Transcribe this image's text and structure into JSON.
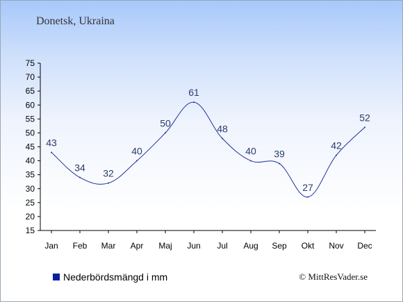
{
  "header": {
    "location": "Donetsk, Ukraina"
  },
  "legend": {
    "label": "Nederbördsmängd i mm",
    "color": "#0a20a0"
  },
  "footer": {
    "credit": "© MittResVader.se"
  },
  "chart_data": {
    "type": "line",
    "categories": [
      "Jan",
      "Feb",
      "Mar",
      "Apr",
      "Maj",
      "Jun",
      "Jul",
      "Aug",
      "Sep",
      "Okt",
      "Nov",
      "Dec"
    ],
    "series": [
      {
        "name": "Nederbördsmängd i mm",
        "values": [
          43,
          34,
          32,
          40,
          50,
          61,
          48,
          40,
          39,
          27,
          42,
          52
        ],
        "color": "#1f2fa0"
      }
    ],
    "ylim": [
      15,
      75
    ],
    "yticks": [
      15,
      20,
      25,
      30,
      35,
      40,
      45,
      50,
      55,
      60,
      65,
      70,
      75
    ],
    "title": "",
    "xlabel": "",
    "ylabel": "",
    "grid": false,
    "legend_position": "bottom-left"
  }
}
